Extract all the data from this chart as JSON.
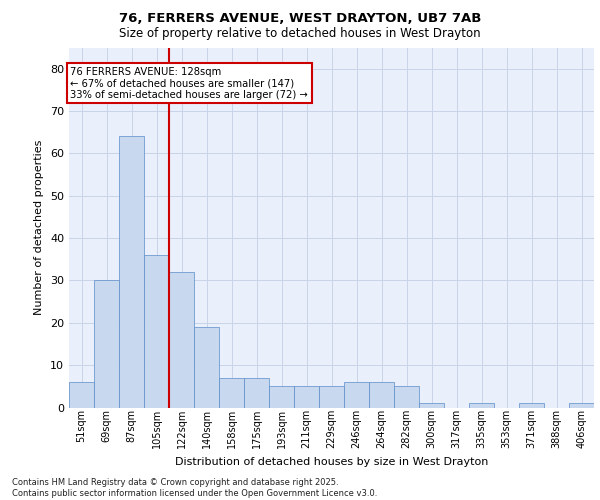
{
  "title_line1": "76, FERRERS AVENUE, WEST DRAYTON, UB7 7AB",
  "title_line2": "Size of property relative to detached houses in West Drayton",
  "xlabel": "Distribution of detached houses by size in West Drayton",
  "ylabel": "Number of detached properties",
  "bin_labels": [
    "51sqm",
    "69sqm",
    "87sqm",
    "105sqm",
    "122sqm",
    "140sqm",
    "158sqm",
    "175sqm",
    "193sqm",
    "211sqm",
    "229sqm",
    "246sqm",
    "264sqm",
    "282sqm",
    "300sqm",
    "317sqm",
    "335sqm",
    "353sqm",
    "371sqm",
    "388sqm",
    "406sqm"
  ],
  "bar_heights": [
    6,
    30,
    64,
    36,
    32,
    19,
    7,
    7,
    5,
    5,
    5,
    6,
    6,
    5,
    1,
    0,
    1,
    0,
    1,
    0,
    1
  ],
  "bar_color": "#c8d9ef",
  "bar_edge_color": "#5b8cc8",
  "red_line_x": 3.5,
  "annotation_text": "76 FERRERS AVENUE: 128sqm\n← 67% of detached houses are smaller (147)\n33% of semi-detached houses are larger (72) →",
  "annotation_box_color": "#ffffff",
  "annotation_box_edge": "#cc0000",
  "red_line_color": "#cc0000",
  "grid_color": "#c8d4e8",
  "background_color": "#eaf0fb",
  "ylim": [
    0,
    85
  ],
  "yticks": [
    0,
    10,
    20,
    30,
    40,
    50,
    60,
    70,
    80
  ],
  "footnote": "Contains HM Land Registry data © Crown copyright and database right 2025.\nContains public sector information licensed under the Open Government Licence v3.0."
}
